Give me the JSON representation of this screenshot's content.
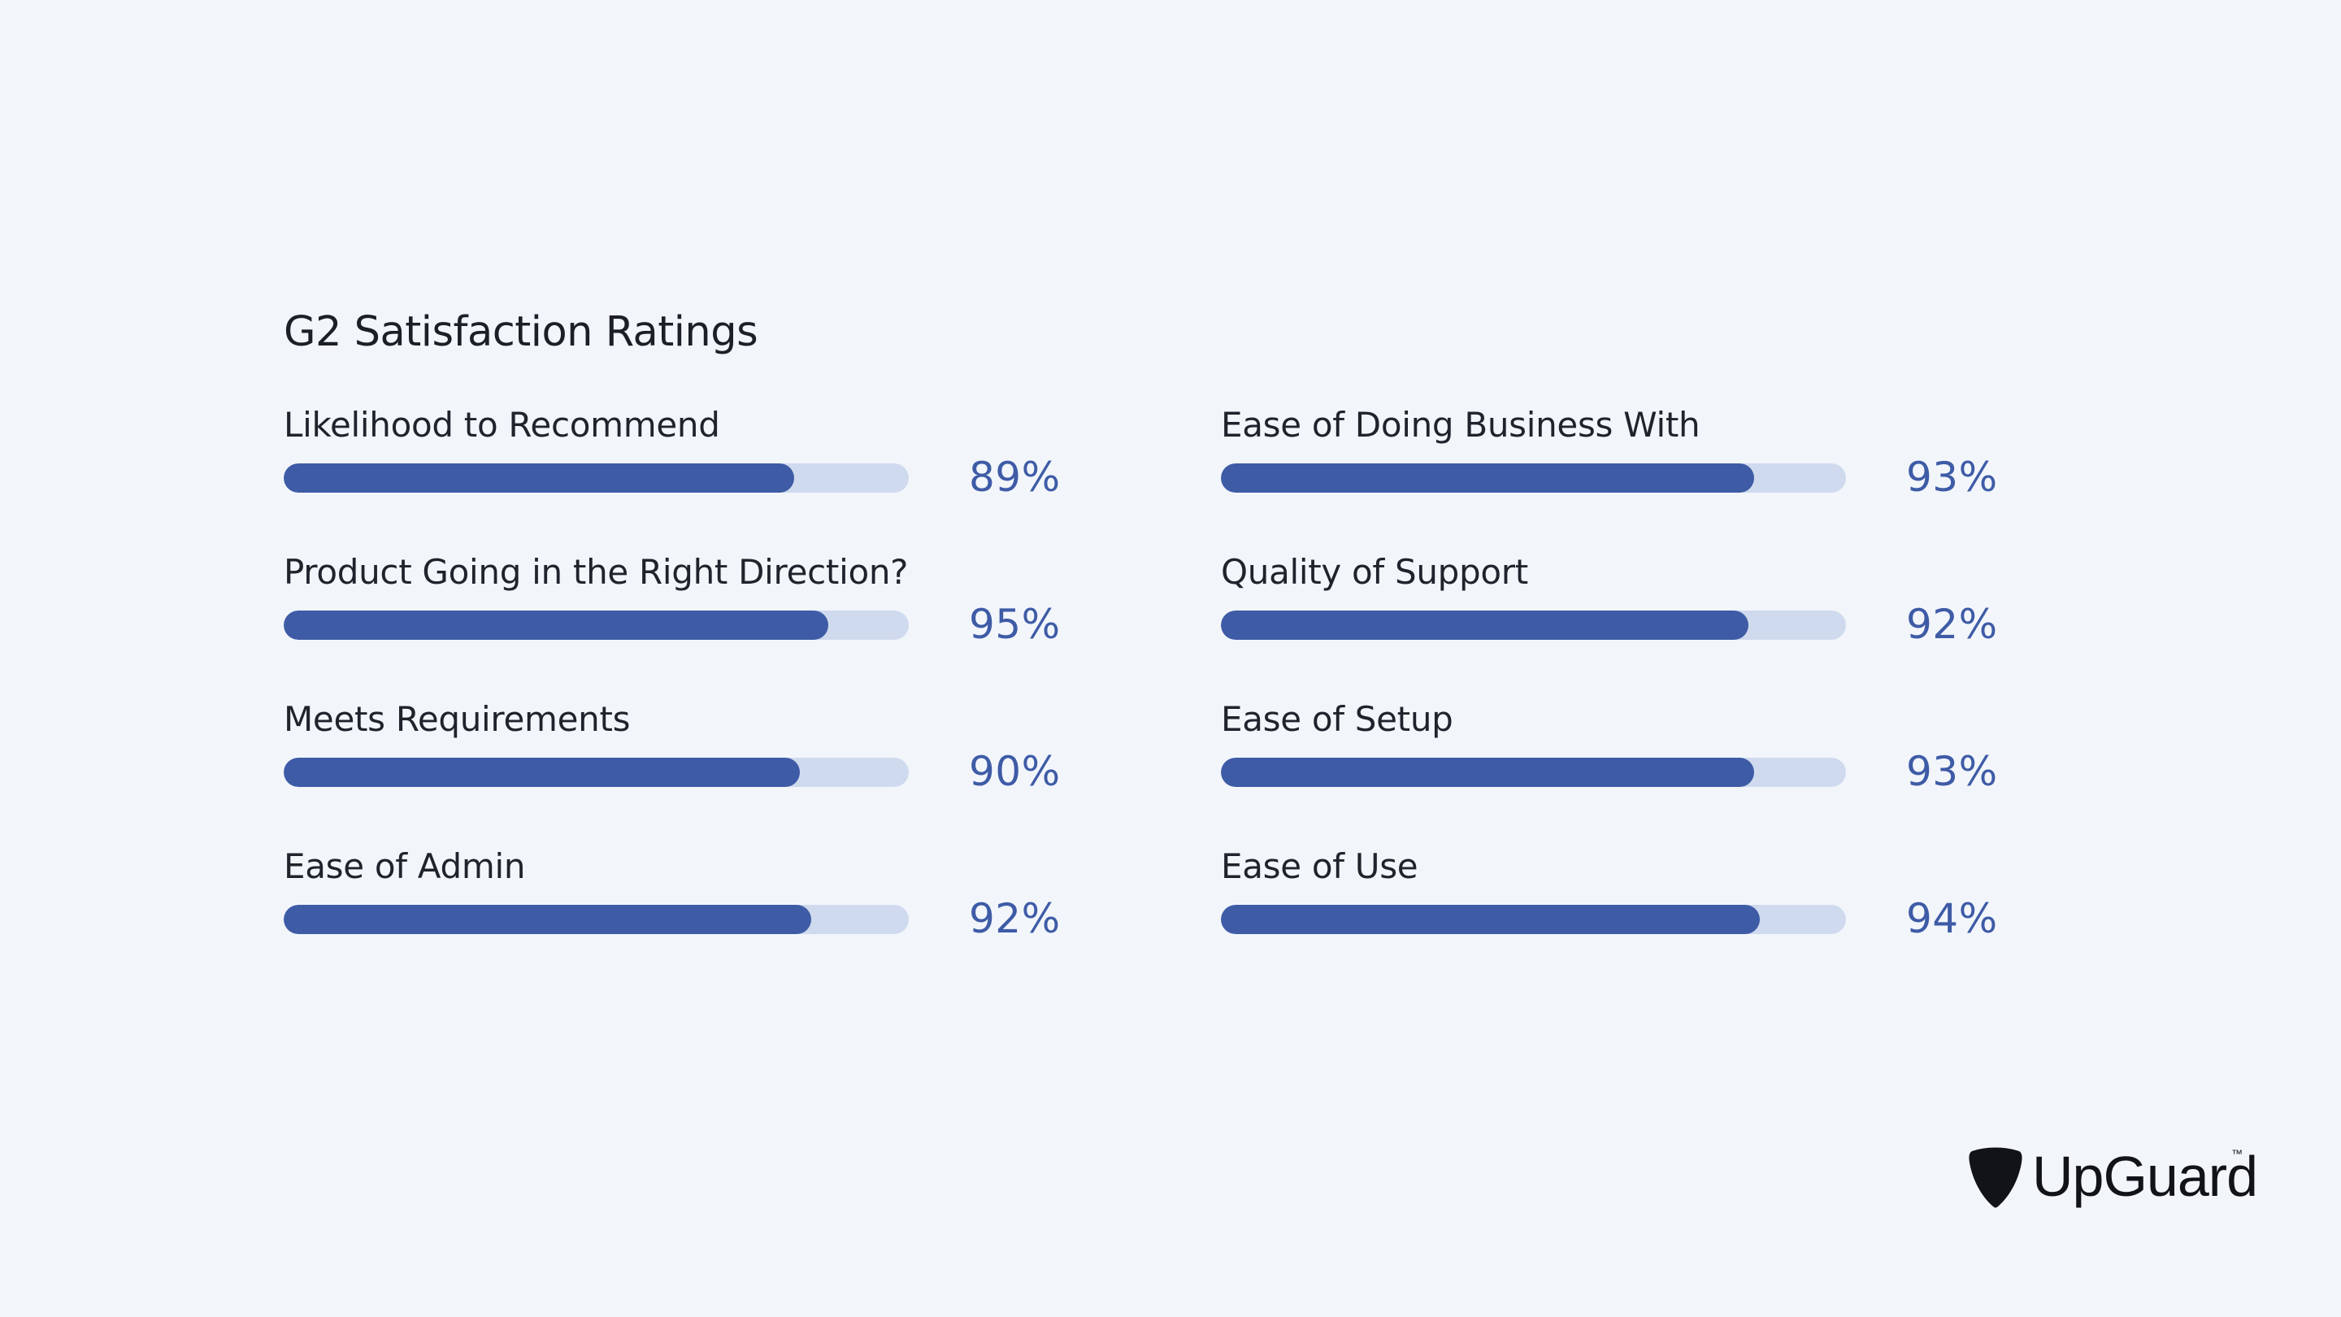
{
  "title": "G2 Satisfaction Ratings",
  "colors": {
    "background": "#f2f6fb",
    "bar_fill": "#3e5ba6",
    "bar_track": "#cfdaee",
    "text": "#1f232b",
    "percent": "#3e5ba6"
  },
  "chart_data": {
    "type": "bar",
    "orientation": "horizontal",
    "title": "G2 Satisfaction Ratings",
    "xlim": [
      0,
      100
    ],
    "unit": "%",
    "categories": [
      "Likelihood to Recommend",
      "Product Going in the Right Direction?",
      "Meets Requirements",
      "Ease of Admin",
      "Ease of Doing Business With",
      "Quality of Support",
      "Ease of Setup",
      "Ease of Use"
    ],
    "values": [
      89,
      95,
      90,
      92,
      93,
      92,
      93,
      94
    ],
    "labels": [
      "89%",
      "95%",
      "90%",
      "92%",
      "93%",
      "92%",
      "93%",
      "94%"
    ]
  },
  "logo": {
    "icon": "guitar-pick-shield-icon",
    "text": "UpGuard",
    "trademark": "™"
  }
}
